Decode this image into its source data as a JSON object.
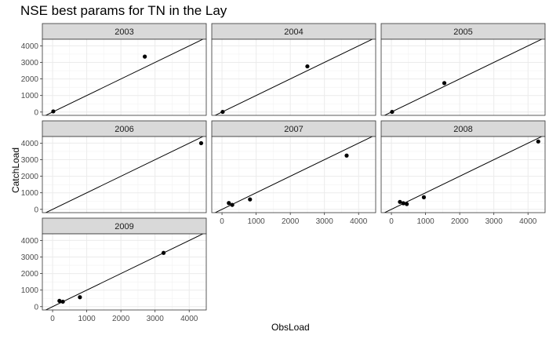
{
  "chart_data": {
    "type": "scatter",
    "title": "NSE best params for TN in the Lay",
    "xlabel": "ObsLoad",
    "ylabel": "CatchLoad",
    "xlim": [
      -300,
      4500
    ],
    "ylim": [
      -200,
      4400
    ],
    "xticks": [
      0,
      1000,
      2000,
      3000,
      4000
    ],
    "yticks": [
      0,
      1000,
      2000,
      3000,
      4000
    ],
    "grid": true,
    "reference_line": "y = x",
    "panels": [
      {
        "label": "2003",
        "points": [
          {
            "x": 20,
            "y": 40
          },
          {
            "x": 2700,
            "y": 3350
          }
        ]
      },
      {
        "label": "2004",
        "points": [
          {
            "x": 20,
            "y": 10
          },
          {
            "x": 2500,
            "y": 2760
          }
        ]
      },
      {
        "label": "2005",
        "points": [
          {
            "x": 20,
            "y": 10
          },
          {
            "x": 1550,
            "y": 1750
          }
        ]
      },
      {
        "label": "2006",
        "points": [
          {
            "x": 4350,
            "y": 4000
          }
        ]
      },
      {
        "label": "2007",
        "points": [
          {
            "x": 200,
            "y": 380
          },
          {
            "x": 300,
            "y": 270
          },
          {
            "x": 820,
            "y": 600
          },
          {
            "x": 3650,
            "y": 3250
          }
        ]
      },
      {
        "label": "2008",
        "points": [
          {
            "x": 250,
            "y": 450
          },
          {
            "x": 350,
            "y": 370
          },
          {
            "x": 450,
            "y": 320
          },
          {
            "x": 950,
            "y": 730
          },
          {
            "x": 4300,
            "y": 4100
          }
        ]
      },
      {
        "label": "2009",
        "points": [
          {
            "x": 200,
            "y": 350
          },
          {
            "x": 300,
            "y": 300
          },
          {
            "x": 800,
            "y": 570
          },
          {
            "x": 3250,
            "y": 3250
          }
        ]
      }
    ]
  }
}
